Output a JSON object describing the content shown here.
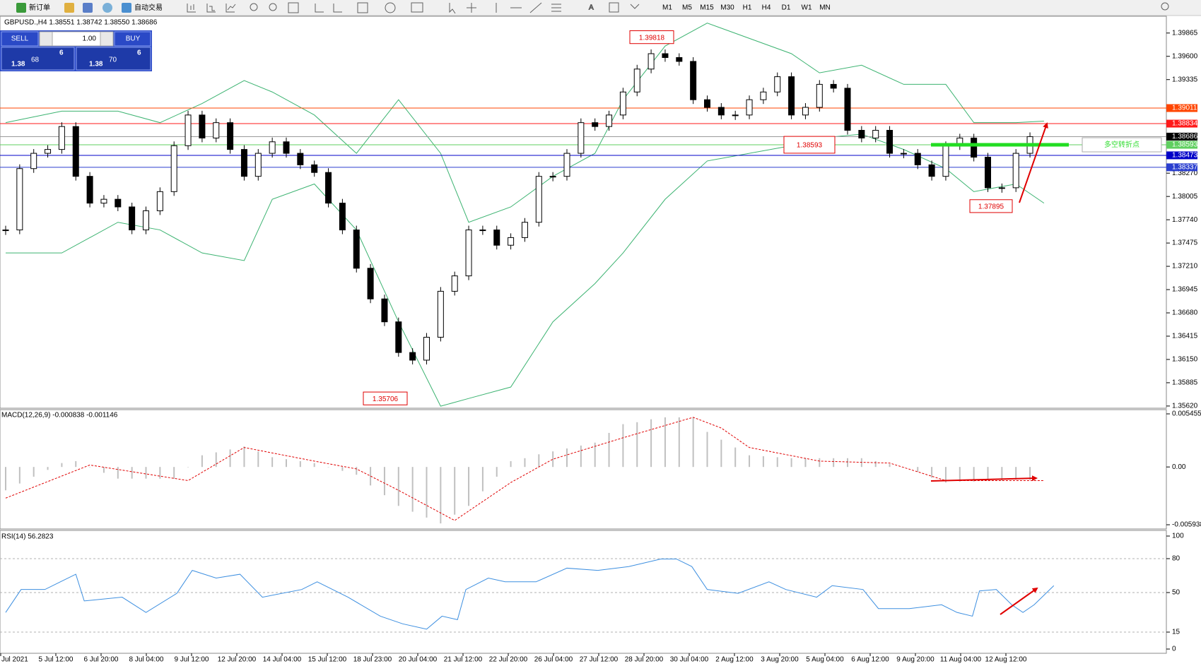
{
  "toolbar": {
    "new_order": "新订单",
    "auto_trading": "自动交易",
    "timeframes": [
      "M1",
      "M5",
      "M15",
      "M30",
      "H1",
      "H4",
      "D1",
      "W1",
      "MN"
    ]
  },
  "trade_panel": {
    "sell": "SELL",
    "lot": "1.00",
    "buy": "BUY",
    "sell_big": "1.38",
    "sell_price": "68",
    "sell_frac": "6",
    "buy_big": "1.38",
    "buy_price": "70",
    "buy_frac": "6"
  },
  "main": {
    "type": "candlestick",
    "title": "GBPUSD.,H4  1.38551 1.38742 1.38550 1.38686",
    "close": [
      1.37624,
      1.38322,
      1.38496,
      1.3854,
      1.38801,
      1.38234,
      1.37929,
      1.37973,
      1.37886,
      1.37624,
      1.37842,
      1.3806,
      1.38583,
      1.38932,
      1.3867,
      1.38845,
      1.3854,
      1.38234,
      1.38496,
      1.38627,
      1.38496,
      1.38365,
      1.38278,
      1.37929,
      1.37624,
      1.37188,
      1.36839,
      1.36578,
      1.36229,
      1.36142,
      1.36403,
      1.36926,
      1.37101,
      1.37624,
      1.37624,
      1.3745,
      1.37537,
      1.37711,
      1.38234,
      1.38234,
      1.38496,
      1.38845,
      1.38801,
      1.38932,
      1.39194,
      1.39455,
      1.3963,
      1.39586,
      1.39542,
      1.39106,
      1.39019,
      1.38932,
      1.38932,
      1.39106,
      1.39194,
      1.39368,
      1.38932,
      1.39019,
      1.39281,
      1.39237,
      1.38758,
      1.3867,
      1.38758,
      1.38496,
      1.38496,
      1.38365,
      1.38234,
      1.38583,
      1.3867,
      1.38452,
      1.38104,
      1.38104,
      1.38496,
      1.38686
    ],
    "ylim": [
      1.35603,
      1.40048
    ],
    "yticks": [
      1.39865,
      {
        "value": 1.396,
        "label": "1.39600"
      },
      1.39335,
      {
        "value": 1.3827,
        "label": "1.38270"
      },
      1.38005,
      {
        "value": 1.3774,
        "label": "1.37740"
      },
      1.37475,
      {
        "value": 1.3721,
        "label": "1.37210"
      },
      1.36945,
      {
        "value": 1.3668,
        "label": "1.36680"
      },
      1.36415,
      {
        "value": 1.3615,
        "label": "1.36150"
      },
      1.35885,
      {
        "value": 1.3562,
        "label": "1.35620"
      }
    ],
    "bb_x": [
      0,
      4,
      8,
      11,
      14,
      17,
      19,
      22,
      25,
      28,
      31,
      33,
      36,
      39,
      42,
      44,
      47,
      50,
      56,
      58,
      61,
      64,
      67,
      69,
      72,
      74
    ],
    "bb_upper": [
      1.38845,
      1.38976,
      1.38976,
      1.38845,
      1.39063,
      1.39324,
      1.39194,
      1.38932,
      1.38496,
      1.39106,
      1.38496,
      1.37711,
      1.37886,
      1.38234,
      1.38496,
      1.39106,
      1.39717,
      1.39978,
      1.3963,
      1.39412,
      1.39499,
      1.39281,
      1.39281,
      1.38845,
      1.38845,
      1.38862
    ],
    "bb_lower": [
      1.37362,
      1.37362,
      1.37711,
      1.37624,
      1.37362,
      1.37275,
      1.37973,
      1.38147,
      1.37624,
      1.36578,
      1.35618,
      1.35706,
      1.35836,
      1.36578,
      1.37014,
      1.37362,
      1.37973,
      1.38409,
      1.38583,
      1.3867,
      1.38714,
      1.3854,
      1.38322,
      1.3806,
      1.38147,
      1.37929
    ],
    "levels": [
      {
        "value": 1.39011,
        "color": "#ff4500"
      },
      {
        "value": 1.38834,
        "color": "#ff1a1a"
      },
      {
        "value": 1.38686,
        "color": "#9a9a9a"
      },
      {
        "value": 1.38593,
        "color": "#5fcf5f"
      },
      {
        "value": 1.38473,
        "color": "#0000c8"
      },
      {
        "value": 1.38337,
        "color": "#2b3fcf"
      }
    ],
    "annotations": [
      1.39818,
      1.38593,
      1.37895,
      1.35706
    ],
    "pivot_label": "多空转折点"
  },
  "macd": {
    "title": "MACD(12,26,9) -0.000838 -0.001146",
    "histogram": [
      -0.0024,
      -0.0017,
      -0.001,
      -0.0003,
      0.0004,
      0.0006,
      0.0,
      -0.0006,
      -0.0012,
      -0.0012,
      -0.0012,
      -0.0012,
      -0.0012,
      0.0,
      0.0012,
      0.0015,
      0.0018,
      0.0021,
      0.0016,
      0.001,
      0.0008,
      0.0006,
      0.0004,
      0.0,
      -0.0004,
      -0.0008,
      -0.0019,
      -0.0029,
      -0.004,
      -0.0046,
      -0.0052,
      -0.0058,
      -0.0049,
      -0.004,
      -0.0025,
      -0.001,
      0.0006,
      0.0009,
      0.0013,
      0.0016,
      0.0019,
      0.0022,
      0.0025,
      0.0035,
      0.0044,
      0.0046,
      0.0049,
      0.0051,
      0.0051,
      0.0051,
      0.0036,
      0.0028,
      0.002,
      0.0012,
      0.0011,
      0.001,
      0.0009,
      0.0009,
      0.0009,
      0.0009,
      0.0009,
      0.0009,
      0.0006,
      0.0003,
      0.0,
      -0.0005,
      -0.0011,
      -0.0016,
      -0.0015,
      -0.0015,
      -0.0014,
      -0.0014,
      -0.0013,
      -0.0013
    ],
    "signal_x": [
      0,
      6,
      13,
      17,
      22,
      25,
      28,
      32,
      36,
      39,
      44,
      49,
      51,
      53,
      58,
      63,
      67,
      74
    ],
    "signal": [
      -0.0032,
      0.0002,
      -0.0014,
      0.002,
      0.0006,
      -0.0002,
      -0.0024,
      -0.0055,
      -0.0016,
      0.0008,
      0.003,
      0.0051,
      0.004,
      0.002,
      0.0006,
      0.0004,
      -0.0014,
      -0.0014
    ],
    "ylim": [
      -0.005938,
      0.005455
    ],
    "yticks": [
      0.005455,
      {
        "value": 0,
        "label": "0.00"
      },
      -0.005938
    ]
  },
  "rsi": {
    "title": "RSI(14) 56.2823",
    "x": [
      0,
      1.1,
      2.8,
      3.9,
      5,
      5.6,
      8.3,
      10,
      12.2,
      13.3,
      15,
      16.7,
      18.3,
      21.1,
      22.2,
      24.4,
      26.7,
      28.3,
      30,
      31.1,
      32.2,
      32.8,
      34.4,
      35.6,
      37.8,
      40,
      42.2,
      44.4,
      46.7,
      47.8,
      48.9,
      50,
      52.2,
      54.4,
      55.6,
      57.8,
      58.9,
      61.1,
      62.2,
      64.4,
      66.7,
      67.8,
      68.9,
      69.4,
      70.6,
      71.7,
      72.5,
      73.3,
      74.7
    ],
    "values": [
      32.4,
      52.7,
      52.7,
      59.5,
      66.2,
      42.6,
      45.9,
      32.4,
      49.3,
      69.6,
      62.8,
      66.2,
      45.9,
      52.7,
      59.5,
      45.9,
      29.1,
      22.3,
      17.6,
      29.1,
      26,
      52.7,
      62.8,
      59.5,
      59.5,
      71.6,
      69.6,
      73,
      79.7,
      79.7,
      73,
      52.7,
      49.3,
      59.5,
      52.7,
      45.9,
      56.1,
      52.7,
      35.8,
      35.8,
      39.2,
      32.4,
      29.1,
      51.4,
      52.7,
      39.2,
      32.4,
      39.2,
      56.1
    ],
    "ylim": [
      0,
      100
    ],
    "yticks": [
      100,
      80,
      50,
      15,
      0
    ]
  },
  "time_axis": [
    "Jul 2021",
    "5 Jul 12:00",
    "6 Jul 20:00",
    "8 Jul 04:00",
    "9 Jul 12:00",
    "12 Jul 20:00",
    "14 Jul 04:00",
    "15 Jul 12:00",
    "18 Jul 23:00",
    "20 Jul 04:00",
    "21 Jul 12:00",
    "22 Jul 20:00",
    "26 Jul 04:00",
    "27 Jul 12:00",
    "28 Jul 20:00",
    "30 Jul 04:00",
    "2 Aug 12:00",
    "3 Aug 20:00",
    "5 Aug 04:00",
    "6 Aug 12:00",
    "9 Aug 20:00",
    "11 Aug 04:00",
    "12 Aug 12:00"
  ]
}
